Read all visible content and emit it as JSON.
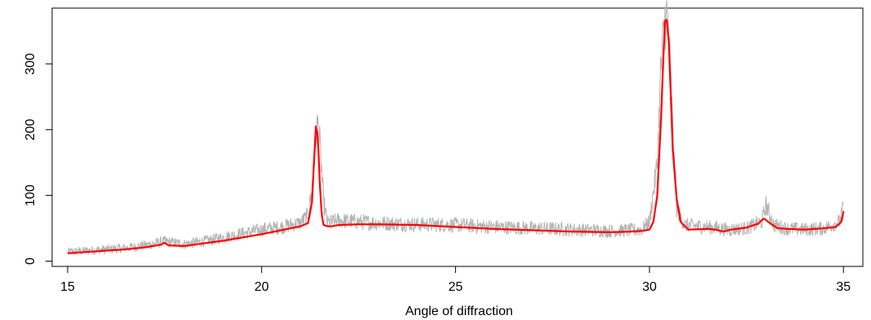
{
  "chart_data": {
    "type": "line",
    "title": "",
    "xlabel": "Angle of diffraction",
    "ylabel": "",
    "xlim": [
      14.6,
      35.5
    ],
    "ylim": [
      -8,
      385
    ],
    "x_ticks": [
      15,
      20,
      25,
      30,
      35
    ],
    "x_tick_labels": [
      "15",
      "20",
      "25",
      "30",
      "35"
    ],
    "y_ticks": [
      0,
      100,
      200,
      300
    ],
    "y_tick_labels": [
      "0",
      "100",
      "200",
      "300"
    ],
    "grid": false,
    "legend": "none",
    "colors": {
      "raw": "#b3b3b3",
      "fit": "#ff0000"
    },
    "series": [
      {
        "style": "raw-spikes",
        "color": "#b3b3b3",
        "x": [
          15.0,
          15.5,
          16.0,
          16.5,
          17.0,
          17.5,
          18.0,
          18.5,
          19.0,
          19.5,
          20.0,
          20.5,
          21.0,
          21.2,
          21.3,
          21.4,
          21.45,
          21.5,
          21.6,
          21.7,
          22.0,
          22.5,
          23.0,
          24.0,
          25.0,
          26.0,
          27.0,
          28.0,
          29.0,
          29.5,
          29.8,
          30.0,
          30.2,
          30.3,
          30.4,
          30.45,
          30.5,
          30.6,
          30.7,
          30.9,
          31.5,
          31.8,
          32.0,
          32.5,
          32.9,
          33.0,
          33.2,
          33.5,
          34.0,
          34.5,
          34.9,
          35.0
        ],
        "y": [
          14,
          16,
          18,
          20,
          24,
          30,
          26,
          30,
          36,
          42,
          48,
          52,
          58,
          70,
          110,
          190,
          210,
          180,
          90,
          58,
          62,
          60,
          58,
          56,
          55,
          52,
          50,
          48,
          46,
          47,
          48,
          60,
          150,
          300,
          368,
          372,
          340,
          200,
          80,
          55,
          52,
          50,
          48,
          50,
          60,
          86,
          55,
          50,
          48,
          50,
          60,
          82
        ]
      },
      {
        "style": "fit-line",
        "color": "#ff0000",
        "x": [
          15.0,
          15.5,
          16.0,
          16.5,
          17.0,
          17.4,
          17.5,
          17.6,
          18.0,
          18.5,
          19.0,
          19.5,
          20.0,
          20.5,
          21.0,
          21.2,
          21.3,
          21.35,
          21.4,
          21.45,
          21.5,
          21.55,
          21.6,
          21.7,
          21.8,
          22.0,
          22.5,
          23.0,
          24.0,
          25.0,
          26.0,
          27.0,
          28.0,
          29.0,
          29.5,
          29.8,
          30.0,
          30.1,
          30.2,
          30.3,
          30.35,
          30.4,
          30.45,
          30.5,
          30.55,
          30.6,
          30.7,
          30.8,
          31.0,
          31.5,
          31.7,
          31.9,
          32.1,
          32.5,
          32.8,
          32.95,
          33.1,
          33.3,
          33.6,
          34.0,
          34.5,
          34.8,
          34.95,
          35.0
        ],
        "y": [
          12,
          14,
          16,
          18,
          21,
          25,
          28,
          24,
          23,
          27,
          31,
          36,
          41,
          47,
          53,
          58,
          90,
          150,
          205,
          190,
          120,
          70,
          55,
          53,
          53,
          55,
          56,
          56,
          55,
          52,
          49,
          47,
          45,
          44,
          45,
          46,
          48,
          60,
          100,
          220,
          300,
          365,
          368,
          330,
          250,
          170,
          95,
          60,
          48,
          49,
          48,
          45,
          48,
          51,
          57,
          65,
          58,
          50,
          49,
          48,
          50,
          52,
          60,
          76
        ]
      }
    ]
  }
}
